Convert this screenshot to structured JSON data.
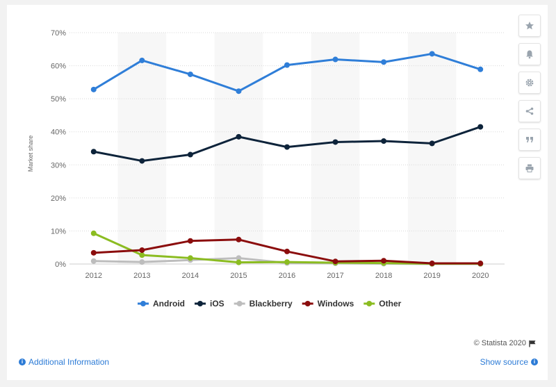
{
  "chart_data": {
    "type": "line",
    "categories": [
      "2012",
      "2013",
      "2014",
      "2015",
      "2016",
      "2017",
      "2018",
      "2019",
      "2020"
    ],
    "ylabel": "Market share",
    "ylim": [
      0,
      70
    ],
    "yticks": [
      0,
      10,
      20,
      30,
      40,
      50,
      60,
      70
    ],
    "ytick_labels": [
      "0%",
      "10%",
      "20%",
      "30%",
      "40%",
      "50%",
      "60%",
      "70%"
    ],
    "grid": true,
    "legend_position": "bottom",
    "series": [
      {
        "name": "Android",
        "color": "#2f7ed8",
        "values": [
          52.8,
          61.6,
          57.4,
          52.3,
          60.2,
          61.9,
          61.1,
          63.6,
          58.9
        ]
      },
      {
        "name": "iOS",
        "color": "#0d233a",
        "values": [
          34.0,
          31.2,
          33.1,
          38.5,
          35.4,
          36.9,
          37.2,
          36.5,
          41.5
        ]
      },
      {
        "name": "Blackberry",
        "color": "#bdbdbd",
        "values": [
          0.9,
          0.6,
          1.2,
          1.8,
          0.3,
          0.2,
          0.1,
          0.0,
          0.0
        ]
      },
      {
        "name": "Windows",
        "color": "#8b0d0d",
        "values": [
          3.4,
          4.2,
          7.0,
          7.4,
          3.8,
          0.8,
          1.0,
          0.2,
          0.2
        ]
      },
      {
        "name": "Other",
        "color": "#8bbc21",
        "values": [
          9.3,
          2.7,
          1.8,
          0.5,
          0.6,
          0.4,
          0.3,
          0.1,
          0.1
        ]
      }
    ]
  },
  "footer": {
    "credits": "© Statista 2020",
    "additional_info": "Additional Information",
    "show_source": "Show source"
  },
  "sidebar": {
    "buttons": [
      "star-icon",
      "bell-icon",
      "gear-icon",
      "share-icon",
      "quote-icon",
      "print-icon"
    ]
  }
}
